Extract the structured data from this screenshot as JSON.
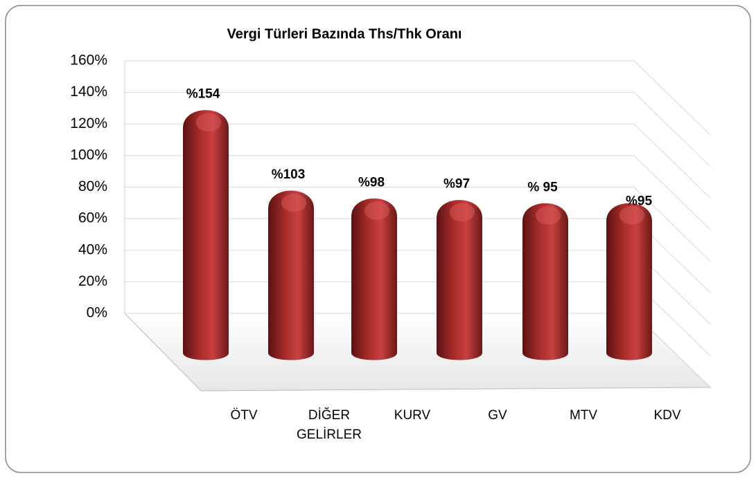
{
  "chart_data": {
    "type": "bar3d",
    "title": "Vergi Türleri Bazında Ths/Thk Oranı",
    "categories": [
      "ÖTV",
      "DİĞER GELİRLER",
      "KURV",
      "GV",
      "MTV",
      "KDV"
    ],
    "values": [
      154,
      103,
      98,
      97,
      95,
      95
    ],
    "value_labels": [
      "%154",
      "%103",
      "%98",
      "%97",
      "% 95",
      "%95"
    ],
    "color": "#b22f2f",
    "ylim": [
      0,
      160
    ],
    "yticks": [
      {
        "value": 0,
        "label": "0%"
      },
      {
        "value": 20,
        "label": "20%"
      },
      {
        "value": 40,
        "label": "40%"
      },
      {
        "value": 60,
        "label": "60%"
      },
      {
        "value": 80,
        "label": "80%"
      },
      {
        "value": 100,
        "label": "100%"
      },
      {
        "value": 120,
        "label": "120%"
      },
      {
        "value": 140,
        "label": "140%"
      },
      {
        "value": 160,
        "label": "160%"
      }
    ],
    "grid": true
  }
}
